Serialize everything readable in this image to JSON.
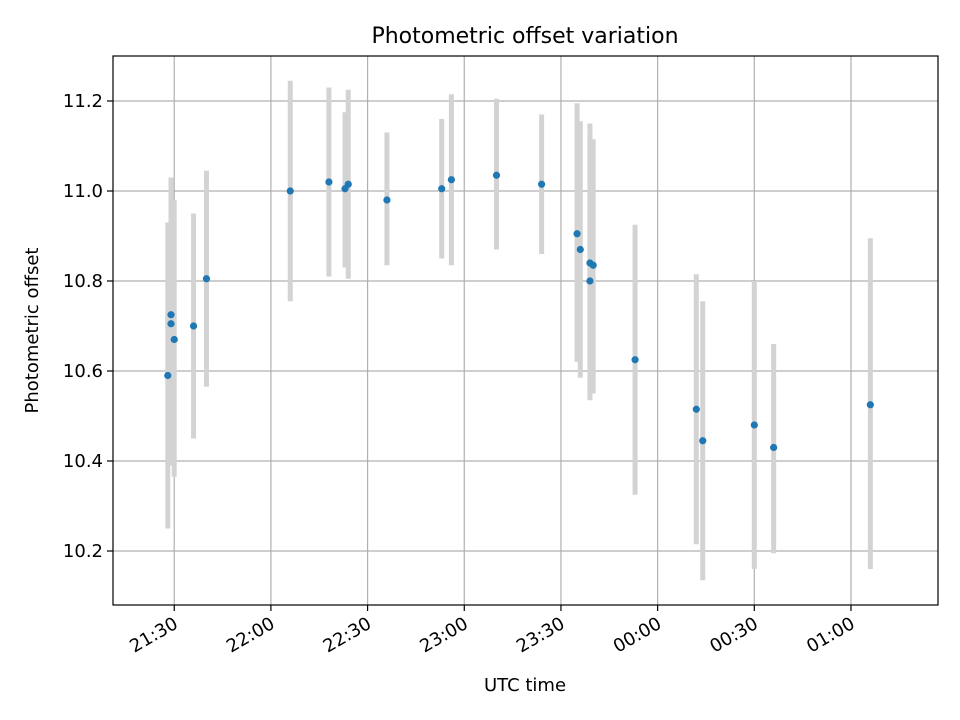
{
  "chart_data": {
    "type": "scatter",
    "title": "Photometric offset variation",
    "xlabel": "UTC time",
    "ylabel": "Photometric offset",
    "x_kind": "time",
    "xlim": [
      "21:11",
      "01:27"
    ],
    "ylim": [
      10.08,
      11.3
    ],
    "x_ticks": [
      "21:30",
      "22:00",
      "22:30",
      "23:00",
      "23:30",
      "00:00",
      "00:30",
      "01:00"
    ],
    "y_ticks": [
      10.2,
      10.4,
      10.6,
      10.8,
      11.0,
      11.2
    ],
    "grid": true,
    "colors": {
      "points": "#1f77b4",
      "errorbars": "#d3d3d3",
      "grid": "#b0b0b0"
    },
    "points": [
      {
        "x": "21:28",
        "y": 10.59,
        "err_low": 10.25,
        "err_high": 10.93
      },
      {
        "x": "21:29",
        "y": 10.725,
        "err_low": 10.39,
        "err_high": 11.03
      },
      {
        "x": "21:29",
        "y": 10.705,
        "err_low": 10.4,
        "err_high": 11.03
      },
      {
        "x": "21:30",
        "y": 10.67,
        "err_low": 10.365,
        "err_high": 10.98
      },
      {
        "x": "21:36",
        "y": 10.7,
        "err_low": 10.45,
        "err_high": 10.95
      },
      {
        "x": "21:40",
        "y": 10.805,
        "err_low": 10.565,
        "err_high": 11.045
      },
      {
        "x": "22:06",
        "y": 11.0,
        "err_low": 10.755,
        "err_high": 11.245
      },
      {
        "x": "22:18",
        "y": 11.02,
        "err_low": 10.81,
        "err_high": 11.23
      },
      {
        "x": "22:23",
        "y": 11.005,
        "err_low": 10.83,
        "err_high": 11.175
      },
      {
        "x": "22:24",
        "y": 11.015,
        "err_low": 10.805,
        "err_high": 11.225
      },
      {
        "x": "22:36",
        "y": 10.98,
        "err_low": 10.835,
        "err_high": 11.13
      },
      {
        "x": "22:53",
        "y": 11.005,
        "err_low": 10.85,
        "err_high": 11.16
      },
      {
        "x": "22:56",
        "y": 11.025,
        "err_low": 10.835,
        "err_high": 11.215
      },
      {
        "x": "23:10",
        "y": 11.035,
        "err_low": 10.87,
        "err_high": 11.205
      },
      {
        "x": "23:24",
        "y": 11.015,
        "err_low": 10.86,
        "err_high": 11.17
      },
      {
        "x": "23:35",
        "y": 10.905,
        "err_low": 10.62,
        "err_high": 11.195
      },
      {
        "x": "23:36",
        "y": 10.87,
        "err_low": 10.585,
        "err_high": 11.155
      },
      {
        "x": "23:39",
        "y": 10.84,
        "err_low": 10.535,
        "err_high": 11.15
      },
      {
        "x": "23:39",
        "y": 10.8,
        "err_low": 10.545,
        "err_high": 11.125
      },
      {
        "x": "23:40",
        "y": 10.835,
        "err_low": 10.55,
        "err_high": 11.115
      },
      {
        "x": "23:53",
        "y": 10.625,
        "err_low": 10.325,
        "err_high": 10.925
      },
      {
        "x": "00:12",
        "y": 10.515,
        "err_low": 10.215,
        "err_high": 10.815
      },
      {
        "x": "00:14",
        "y": 10.445,
        "err_low": 10.135,
        "err_high": 10.755
      },
      {
        "x": "00:30",
        "y": 10.48,
        "err_low": 10.16,
        "err_high": 10.8
      },
      {
        "x": "00:36",
        "y": 10.43,
        "err_low": 10.195,
        "err_high": 10.66
      },
      {
        "x": "01:06",
        "y": 10.525,
        "err_low": 10.16,
        "err_high": 10.895
      }
    ]
  }
}
